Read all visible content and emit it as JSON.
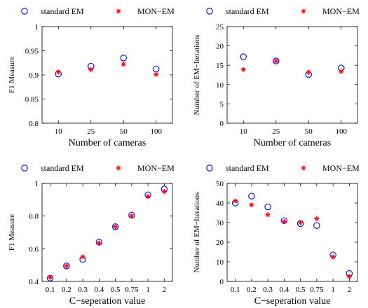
{
  "legend_labels": {
    "em": "standard EM",
    "mon": "MON−EM"
  },
  "colors": {
    "em": "#0000ff",
    "mon": "#ff0000",
    "axis": "#000000"
  },
  "chart_data": [
    {
      "type": "scatter",
      "categories": [
        "10",
        "25",
        "50",
        "100"
      ],
      "series": [
        {
          "name": "standard EM",
          "values": [
            0.902,
            0.918,
            0.935,
            0.912
          ]
        },
        {
          "name": "MON−EM",
          "values": [
            0.906,
            0.911,
            0.922,
            0.901
          ]
        }
      ],
      "xlabel": "Number of cameras",
      "ylabel": "F1 Measure",
      "ylim": [
        0.8,
        1
      ],
      "yticks": [
        0.8,
        0.85,
        0.9,
        0.95,
        1
      ],
      "ytick_labels": [
        "0.8",
        "0.85",
        "0.9",
        "0.95",
        "1"
      ],
      "legend": "top"
    },
    {
      "type": "scatter",
      "categories": [
        "10",
        "25",
        "50",
        "100"
      ],
      "series": [
        {
          "name": "standard EM",
          "values": [
            17.2,
            16.1,
            12.6,
            14.3
          ]
        },
        {
          "name": "MON−EM",
          "values": [
            13.9,
            16.1,
            13.2,
            13.4
          ]
        }
      ],
      "xlabel": "Number of cameras",
      "ylabel": "Number of EM−Iterations",
      "ylim": [
        0,
        25
      ],
      "yticks": [
        0,
        5,
        10,
        15,
        20,
        25
      ],
      "ytick_labels": [
        "0",
        "5",
        "10",
        "15",
        "20",
        "25"
      ],
      "legend": "top"
    },
    {
      "type": "scatter",
      "categories": [
        "0.1",
        "0.2",
        "0.3",
        "0.4",
        "0.5",
        "0.75",
        "1",
        "2"
      ],
      "series": [
        {
          "name": "standard EM",
          "values": [
            0.42,
            0.495,
            0.535,
            0.64,
            0.735,
            0.805,
            0.93,
            0.965
          ]
        },
        {
          "name": "MON−EM",
          "values": [
            0.425,
            0.495,
            0.55,
            0.635,
            0.735,
            0.8,
            0.92,
            0.95
          ]
        }
      ],
      "xlabel": "C−seperation value",
      "ylabel": "F1 Measure",
      "ylim": [
        0.4,
        1
      ],
      "yticks": [
        0.4,
        0.6,
        0.8,
        1
      ],
      "ytick_labels": [
        "0.4",
        "0.6",
        "0.8",
        "1"
      ],
      "legend": "top"
    },
    {
      "type": "scatter",
      "categories": [
        "0.1",
        "0.2",
        "0.3",
        "0.4",
        "0.5",
        "0.75",
        "1",
        "2"
      ],
      "series": [
        {
          "name": "standard EM",
          "values": [
            40,
            43.5,
            38,
            31,
            29.5,
            28.5,
            13.5,
            4
          ]
        },
        {
          "name": "MON−EM",
          "values": [
            41,
            39,
            34,
            30.5,
            30,
            32,
            12.5,
            2.5
          ]
        }
      ],
      "xlabel": "C−seperation value",
      "ylabel": "Number of EM−Iterations",
      "ylim": [
        0,
        50
      ],
      "yticks": [
        0,
        10,
        20,
        30,
        40,
        50
      ],
      "ytick_labels": [
        "0",
        "10",
        "20",
        "30",
        "40",
        "50"
      ],
      "legend": "top"
    }
  ]
}
